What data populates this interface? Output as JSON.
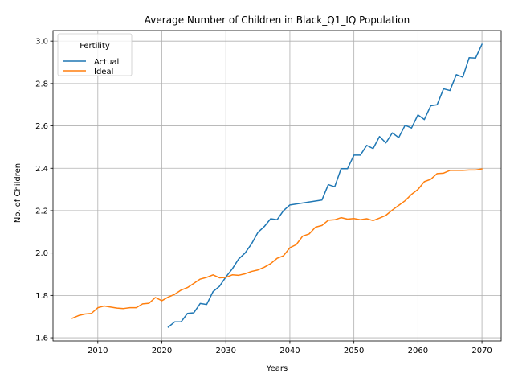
{
  "chart_data": {
    "type": "line",
    "title": "Average Number of Children in Black_Q1_IQ Population",
    "xlabel": "Years",
    "ylabel": "No. of Children",
    "xlim": [
      2003,
      2073
    ],
    "ylim": [
      1.585,
      3.05
    ],
    "xticks": [
      2010,
      2020,
      2030,
      2040,
      2050,
      2060,
      2070
    ],
    "yticks": [
      1.6,
      1.8,
      2.0,
      2.2,
      2.4,
      2.6,
      2.8,
      3.0
    ],
    "xtick_labels": [
      "2010",
      "2020",
      "2030",
      "2040",
      "2050",
      "2060",
      "2070"
    ],
    "ytick_labels": [
      "1.6",
      "1.8",
      "2.0",
      "2.2",
      "2.4",
      "2.6",
      "2.8",
      "3.0"
    ],
    "grid": true,
    "legend": {
      "title": "Fertility",
      "position": "upper-left"
    },
    "series": [
      {
        "name": "Actual",
        "color": "#1f77b4",
        "x": [
          2021,
          2022,
          2023,
          2024,
          2025,
          2026,
          2027,
          2028,
          2029,
          2030,
          2031,
          2032,
          2033,
          2034,
          2035,
          2036,
          2037,
          2038,
          2039,
          2040,
          2045,
          2046,
          2047,
          2048,
          2049,
          2050,
          2051,
          2052,
          2053,
          2054,
          2055,
          2056,
          2057,
          2058,
          2059,
          2060,
          2061,
          2062,
          2063,
          2064,
          2065,
          2066,
          2067,
          2068,
          2069,
          2070
        ],
        "y": [
          1.65,
          1.675,
          1.675,
          1.715,
          1.718,
          1.762,
          1.757,
          1.818,
          1.843,
          1.887,
          1.925,
          1.972,
          2.0,
          2.043,
          2.097,
          2.125,
          2.162,
          2.157,
          2.2,
          2.227,
          2.25,
          2.323,
          2.313,
          2.398,
          2.398,
          2.462,
          2.462,
          2.508,
          2.493,
          2.55,
          2.52,
          2.567,
          2.545,
          2.603,
          2.59,
          2.652,
          2.63,
          2.695,
          2.7,
          2.775,
          2.767,
          2.842,
          2.83,
          2.922,
          2.92,
          2.985
        ]
      },
      {
        "name": "Ideal",
        "color": "#ff7f0e",
        "x": [
          2006,
          2007,
          2008,
          2009,
          2010,
          2011,
          2012,
          2013,
          2014,
          2015,
          2016,
          2017,
          2018,
          2019,
          2020,
          2021,
          2022,
          2023,
          2024,
          2025,
          2026,
          2027,
          2028,
          2029,
          2030,
          2031,
          2032,
          2033,
          2034,
          2035,
          2036,
          2037,
          2038,
          2039,
          2040,
          2041,
          2042,
          2043,
          2044,
          2045,
          2046,
          2047,
          2048,
          2049,
          2050,
          2051,
          2052,
          2053,
          2054,
          2055,
          2056,
          2057,
          2058,
          2059,
          2060,
          2061,
          2062,
          2063,
          2064,
          2065,
          2066,
          2067,
          2068,
          2069,
          2070
        ],
        "y": [
          1.692,
          1.705,
          1.712,
          1.715,
          1.742,
          1.75,
          1.745,
          1.74,
          1.738,
          1.742,
          1.742,
          1.76,
          1.763,
          1.79,
          1.775,
          1.792,
          1.805,
          1.825,
          1.837,
          1.857,
          1.877,
          1.885,
          1.897,
          1.883,
          1.885,
          1.897,
          1.895,
          1.902,
          1.913,
          1.92,
          1.933,
          1.95,
          1.975,
          1.987,
          2.025,
          2.04,
          2.08,
          2.09,
          2.122,
          2.13,
          2.155,
          2.157,
          2.167,
          2.16,
          2.163,
          2.157,
          2.162,
          2.153,
          2.165,
          2.178,
          2.203,
          2.225,
          2.247,
          2.277,
          2.3,
          2.337,
          2.348,
          2.375,
          2.377,
          2.39,
          2.39,
          2.39,
          2.392,
          2.392,
          2.397
        ]
      }
    ]
  }
}
